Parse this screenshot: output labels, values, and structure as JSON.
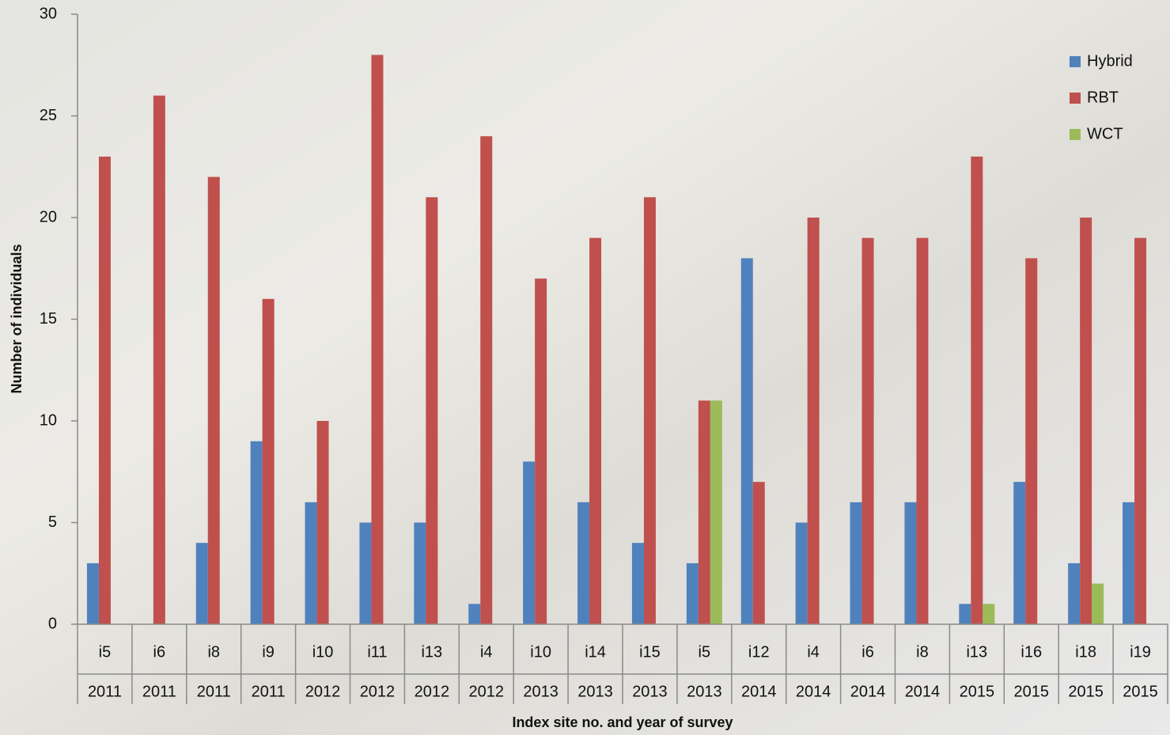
{
  "chart_data": {
    "type": "bar",
    "y_label": "Number of individuals",
    "x_label": "Index site no. and year of survey",
    "categories": [
      "i5",
      "i6",
      "i8",
      "i9",
      "i10",
      "i11",
      "i13",
      "i4",
      "i10",
      "i14",
      "i15",
      "i5",
      "i12",
      "i4",
      "i6",
      "i8",
      "i13",
      "i16",
      "i18",
      "i19"
    ],
    "years": [
      "2011",
      "2011",
      "2011",
      "2011",
      "2012",
      "2012",
      "2012",
      "2012",
      "2013",
      "2013",
      "2013",
      "2013",
      "2014",
      "2014",
      "2014",
      "2014",
      "2015",
      "2015",
      "2015",
      "2015"
    ],
    "series": [
      {
        "name": "Hybrid",
        "color": "#4f81bd",
        "values": [
          3,
          0,
          4,
          9,
          6,
          5,
          5,
          1,
          8,
          6,
          4,
          3,
          18,
          5,
          6,
          6,
          1,
          7,
          3,
          6
        ]
      },
      {
        "name": "RBT",
        "color": "#c0504d",
        "values": [
          23,
          26,
          22,
          16,
          10,
          28,
          21,
          24,
          17,
          19,
          21,
          11,
          7,
          20,
          19,
          19,
          23,
          18,
          20,
          19
        ]
      },
      {
        "name": "WCT",
        "color": "#9bbb59",
        "values": [
          0,
          0,
          0,
          0,
          0,
          0,
          0,
          0,
          0,
          0,
          0,
          11,
          0,
          0,
          0,
          0,
          1,
          0,
          2,
          0
        ]
      }
    ],
    "ylim": [
      0,
      30
    ],
    "yticks": [
      0,
      5,
      10,
      15,
      20,
      25,
      30
    ],
    "legend": "top-right"
  }
}
